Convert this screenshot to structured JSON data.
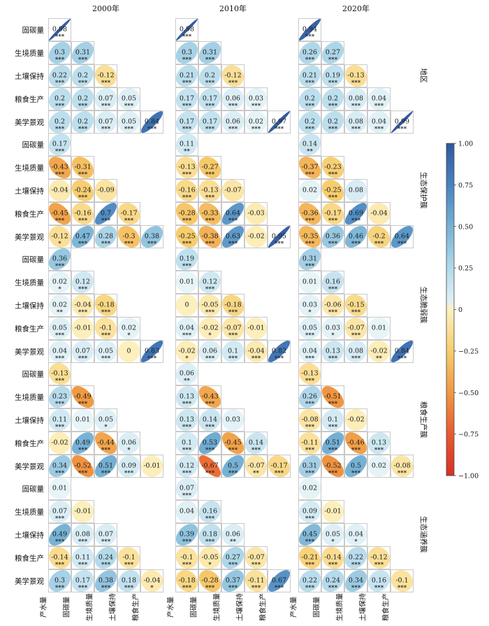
{
  "chart_data": {
    "type": "heatmap",
    "years": [
      "2000年",
      "2010年",
      "2020年"
    ],
    "variables": [
      "产水量",
      "固碳量",
      "生境质量",
      "土壤保持",
      "粮食生产",
      "美学景观"
    ],
    "regions": [
      "地区",
      "生态保护簇",
      "生态脆弱簇",
      "粮食生产簇",
      "生态涵养簇"
    ],
    "colorbar": {
      "min": -1.0,
      "max": 1.0,
      "ticks": [
        "1.00",
        "0.75",
        "0.50",
        "0.25",
        "0",
        "−0.25",
        "−0.50",
        "−0.75",
        "−1.00"
      ]
    },
    "panels": [
      [
        {
          "v": [
            [
              0.98
            ],
            [
              0.3,
              0.31
            ],
            [
              0.22,
              0.2,
              -0.12
            ],
            [
              0.2,
              0.2,
              0.07,
              0.05
            ],
            [
              0.2,
              0.2,
              0.07,
              0.05,
              0.84
            ]
          ],
          "s": [
            [
              "***"
            ],
            [
              "***",
              "***"
            ],
            [
              "***",
              "***",
              "***"
            ],
            [
              "***",
              "***",
              "***",
              "***"
            ],
            [
              "***",
              "***",
              "***",
              "***",
              "***"
            ]
          ]
        },
        {
          "v": [
            [
              0.17
            ],
            [
              -0.43,
              -0.31
            ],
            [
              -0.04,
              -0.24,
              -0.09
            ],
            [
              -0.45,
              -0.16,
              0.7,
              -0.17
            ],
            [
              -0.12,
              0.47,
              0.28,
              -0.3,
              0.38
            ]
          ],
          "s": [
            [
              "***"
            ],
            [
              "***",
              "***"
            ],
            [
              "",
              "***",
              ""
            ],
            [
              "***",
              "***",
              "***",
              "***"
            ],
            [
              "*",
              "***",
              "***",
              "***",
              "***"
            ]
          ]
        },
        {
          "v": [
            [
              0.36
            ],
            [
              0.02,
              0.12
            ],
            [
              0.02,
              -0.04,
              -0.18
            ],
            [
              0.05,
              -0.01,
              -0.1,
              0.02
            ],
            [
              0.04,
              0.07,
              0.05,
              0,
              0.83
            ]
          ],
          "s": [
            [
              "***"
            ],
            [
              "*",
              "***"
            ],
            [
              "**",
              "***",
              "***"
            ],
            [
              "***",
              "",
              "***",
              "*"
            ],
            [
              "***",
              "***",
              "***",
              "",
              "***"
            ]
          ]
        },
        {
          "v": [
            [
              -0.13
            ],
            [
              0.23,
              -0.49
            ],
            [
              0.11,
              0.01,
              0.05
            ],
            [
              -0.02,
              0.49,
              -0.44,
              0.06
            ],
            [
              0.34,
              -0.52,
              0.51,
              0.09,
              -0.01
            ]
          ],
          "s": [
            [
              "***"
            ],
            [
              "***",
              "***"
            ],
            [
              "***",
              "",
              "*"
            ],
            [
              "",
              "***",
              "***",
              "*"
            ],
            [
              "***",
              "***",
              "***",
              "***",
              ""
            ]
          ]
        },
        {
          "v": [
            [
              0.01
            ],
            [
              0.07,
              -0.01
            ],
            [
              0.49,
              0.08,
              0.07
            ],
            [
              -0.14,
              0.11,
              0.24,
              -0.1
            ],
            [
              0.3,
              0.17,
              0.38,
              0.18,
              -0.04
            ]
          ],
          "s": [
            [
              ""
            ],
            [
              "***",
              ""
            ],
            [
              "***",
              "***",
              "***"
            ],
            [
              "***",
              "***",
              "***",
              "***"
            ],
            [
              "***",
              "***",
              "***",
              "***",
              "*"
            ]
          ]
        }
      ],
      [
        {
          "v": [
            [
              0.98
            ],
            [
              0.3,
              0.31
            ],
            [
              0.21,
              0.2,
              -0.12
            ],
            [
              0.17,
              0.17,
              0.06,
              0.03
            ],
            [
              0.17,
              0.17,
              0.06,
              0.02,
              0.97
            ]
          ],
          "s": [
            [
              "***"
            ],
            [
              "***",
              "***"
            ],
            [
              "***",
              "***",
              "***"
            ],
            [
              "***",
              "***",
              "***",
              "***"
            ],
            [
              "***",
              "***",
              "***",
              "***",
              "***"
            ]
          ]
        },
        {
          "v": [
            [
              0.11
            ],
            [
              -0.13,
              -0.27
            ],
            [
              -0.16,
              -0.13,
              -0.07
            ],
            [
              -0.28,
              -0.33,
              0.64,
              -0.03
            ],
            [
              -0.25,
              -0.38,
              0.63,
              -0.02,
              0.95
            ]
          ],
          "s": [
            [
              "**"
            ],
            [
              "***",
              "***"
            ],
            [
              "***",
              "***",
              ""
            ],
            [
              "***",
              "***",
              "***",
              ""
            ],
            [
              "***",
              "***",
              "***",
              "",
              "***"
            ]
          ]
        },
        {
          "v": [
            [
              0.19
            ],
            [
              0.01,
              0.12
            ],
            [
              0,
              -0.05,
              -0.18
            ],
            [
              0.04,
              -0.02,
              -0.07,
              -0.01
            ],
            [
              -0.02,
              0.06,
              0.1,
              -0.04,
              0.82
            ]
          ],
          "s": [
            [
              "***"
            ],
            [
              "",
              "***"
            ],
            [
              "",
              "***",
              "***"
            ],
            [
              "***",
              "*",
              "***",
              ""
            ],
            [
              "*",
              "***",
              "***",
              "***",
              "***"
            ]
          ]
        },
        {
          "v": [
            [
              0.06
            ],
            [
              0.13,
              -0.43
            ],
            [
              0.13,
              0.14,
              0.03
            ],
            [
              0.1,
              0.53,
              -0.45,
              0.14
            ],
            [
              0.12,
              -0.67,
              0.5,
              -0.07,
              -0.17
            ]
          ],
          "s": [
            [
              "**"
            ],
            [
              "***",
              "***"
            ],
            [
              "***",
              "***",
              ""
            ],
            [
              "***",
              "***",
              "***",
              "***"
            ],
            [
              "***",
              "***",
              "***",
              "**",
              "***"
            ]
          ]
        },
        {
          "v": [
            [
              0.07
            ],
            [
              0.04,
              0.16
            ],
            [
              0.39,
              0.18,
              0.06
            ],
            [
              -0.1,
              -0.05,
              0.27,
              -0.07
            ],
            [
              -0.18,
              -0.28,
              0.37,
              -0.11,
              0.67
            ]
          ],
          "s": [
            [
              "***"
            ],
            [
              "",
              "***"
            ],
            [
              "***",
              "***",
              "**"
            ],
            [
              "***",
              "*",
              "***",
              "***"
            ],
            [
              "***",
              "***",
              "***",
              "***",
              "***"
            ]
          ]
        }
      ],
      [
        {
          "v": [
            [
              0.94
            ],
            [
              0.26,
              0.27
            ],
            [
              0.21,
              0.19,
              -0.13
            ],
            [
              0.2,
              0.2,
              0.08,
              0.04
            ],
            [
              0.2,
              0.2,
              0.08,
              0.04,
              0.99
            ]
          ],
          "s": [
            [
              "***"
            ],
            [
              "***",
              "***"
            ],
            [
              "***",
              "***",
              "***"
            ],
            [
              "***",
              "***",
              "***",
              "***"
            ],
            [
              "***",
              "***",
              "***",
              "***",
              "***"
            ]
          ]
        },
        {
          "v": [
            [
              0.14
            ],
            [
              -0.37,
              -0.23
            ],
            [
              0.02,
              -0.25,
              0.08
            ],
            [
              -0.36,
              -0.17,
              0.69,
              -0.04
            ],
            [
              -0.35,
              0.36,
              0.46,
              -0.2,
              0.64
            ]
          ],
          "s": [
            [
              "**"
            ],
            [
              "***",
              "***"
            ],
            [
              "",
              "***",
              ""
            ],
            [
              "***",
              "***",
              "***",
              ""
            ],
            [
              "***",
              "***",
              "***",
              "***",
              "***"
            ]
          ]
        },
        {
          "v": [
            [
              0.31
            ],
            [
              0.01,
              0.16
            ],
            [
              0.03,
              -0.06,
              -0.15
            ],
            [
              0.05,
              0.03,
              -0.07,
              0.01
            ],
            [
              0.04,
              0.13,
              0.08,
              -0.02,
              0.84
            ]
          ],
          "s": [
            [
              "***"
            ],
            [
              "",
              "***"
            ],
            [
              "*",
              "***",
              "***"
            ],
            [
              "***",
              "*",
              "***",
              ""
            ],
            [
              "***",
              "***",
              "***",
              "**",
              "***"
            ]
          ]
        },
        {
          "v": [
            [
              -0.13
            ],
            [
              0.26,
              -0.51
            ],
            [
              -0.08,
              0.1,
              -0.02
            ],
            [
              -0.11,
              0.51,
              -0.46,
              0.13
            ],
            [
              0.31,
              -0.52,
              0.5,
              0.02,
              -0.08
            ]
          ],
          "s": [
            [
              "***"
            ],
            [
              "***",
              "***"
            ],
            [
              "***",
              "***",
              ""
            ],
            [
              "***",
              "***",
              "***",
              "***"
            ],
            [
              "***",
              "***",
              "***",
              "",
              "***"
            ]
          ]
        },
        {
          "v": [
            [
              0.02
            ],
            [
              0.09,
              -0.01
            ],
            [
              0.45,
              0.05,
              0.04
            ],
            [
              -0.21,
              -0.14,
              0.22,
              -0.12
            ],
            [
              0.22,
              0.24,
              0.34,
              0.16,
              -0.1
            ]
          ],
          "s": [
            [
              ""
            ],
            [
              "***",
              ""
            ],
            [
              "***",
              "*",
              "*"
            ],
            [
              "***",
              "***",
              "***",
              "***"
            ],
            [
              "***",
              "***",
              "***",
              "***",
              "***"
            ]
          ]
        }
      ]
    ]
  }
}
